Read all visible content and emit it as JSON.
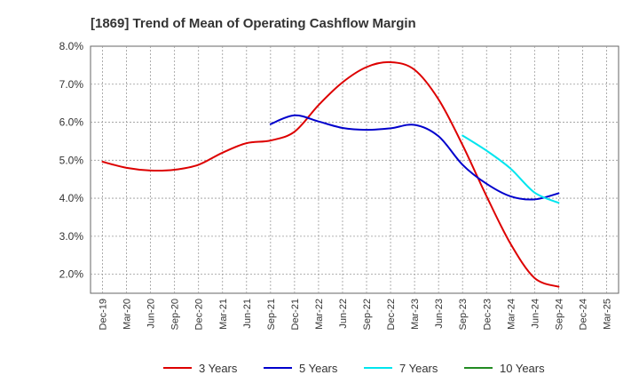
{
  "chart_data": {
    "type": "line",
    "title": "[1869]  Trend of Mean of Operating Cashflow Margin",
    "xlabel": "",
    "ylabel": "",
    "ylim": [
      1.5,
      8.0
    ],
    "y_ticks": [
      2.0,
      3.0,
      4.0,
      5.0,
      6.0,
      7.0,
      8.0
    ],
    "y_tick_labels": [
      "2.0%",
      "3.0%",
      "4.0%",
      "5.0%",
      "6.0%",
      "7.0%",
      "8.0%"
    ],
    "categories": [
      "Dec-19",
      "Mar-20",
      "Jun-20",
      "Sep-20",
      "Dec-20",
      "Mar-21",
      "Jun-21",
      "Sep-21",
      "Dec-21",
      "Mar-22",
      "Jun-22",
      "Sep-22",
      "Dec-22",
      "Mar-23",
      "Jun-23",
      "Sep-23",
      "Dec-23",
      "Mar-24",
      "Jun-24",
      "Sep-24",
      "Dec-24",
      "Mar-25"
    ],
    "grid": true,
    "legend_position": "bottom",
    "series": [
      {
        "name": "3 Years",
        "color": "#dd0000",
        "values": [
          4.96,
          4.8,
          4.73,
          4.75,
          4.88,
          5.2,
          5.45,
          5.52,
          5.75,
          6.45,
          7.05,
          7.45,
          7.58,
          7.38,
          6.6,
          5.4,
          4.05,
          2.8,
          1.9,
          1.67,
          null,
          null
        ]
      },
      {
        "name": "5 Years",
        "color": "#0000cc",
        "values": [
          null,
          null,
          null,
          null,
          null,
          null,
          null,
          5.95,
          6.18,
          6.02,
          5.85,
          5.8,
          5.84,
          5.93,
          5.63,
          4.88,
          4.38,
          4.05,
          3.97,
          4.13,
          null,
          null
        ]
      },
      {
        "name": "7 Years",
        "color": "#00e5ee",
        "values": [
          null,
          null,
          null,
          null,
          null,
          null,
          null,
          null,
          null,
          null,
          null,
          null,
          null,
          null,
          null,
          5.65,
          5.25,
          4.78,
          4.15,
          3.88,
          null,
          null
        ]
      },
      {
        "name": "10 Years",
        "color": "#228b22",
        "values": [
          null,
          null,
          null,
          null,
          null,
          null,
          null,
          null,
          null,
          null,
          null,
          null,
          null,
          null,
          null,
          null,
          null,
          null,
          null,
          null,
          null,
          null
        ]
      }
    ]
  }
}
